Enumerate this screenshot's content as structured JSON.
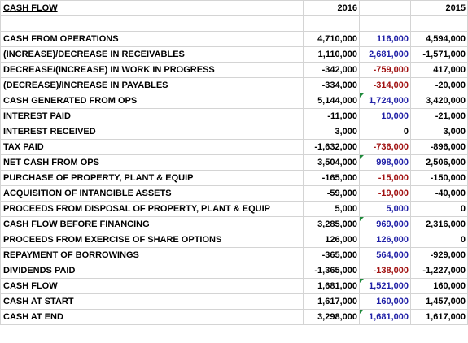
{
  "colors": {
    "positive_diff": "#1f1fa6",
    "negative_diff": "#a11212",
    "error_indicator": "#1f8a3b",
    "gridline": "#d4d4d4"
  },
  "header": {
    "title": "CASH FLOW",
    "year_1": "2016",
    "diff": "",
    "year_2": "2015"
  },
  "rows": [
    {
      "label": "",
      "y2016": "",
      "diff": "",
      "y2015": "",
      "tone": ""
    },
    {
      "label": "CASH FROM OPERATIONS",
      "y2016": "4,710,000",
      "diff": "116,000",
      "y2015": "4,594,000",
      "tone": "blue"
    },
    {
      "label": "(INCREASE)/DECREASE IN RECEIVABLES",
      "y2016": "1,110,000",
      "diff": "2,681,000",
      "y2015": "-1,571,000",
      "tone": "blue"
    },
    {
      "label": "DECREASE/(INCREASE) IN WORK IN PROGRESS",
      "y2016": "-342,000",
      "diff": "-759,000",
      "y2015": "417,000",
      "tone": "red"
    },
    {
      "label": "(DECREASE)/INCREASE IN PAYABLES",
      "y2016": "-334,000",
      "diff": "-314,000",
      "y2015": "-20,000",
      "tone": "red"
    },
    {
      "label": "CASH GENERATED FROM OPS",
      "y2016": "5,144,000",
      "diff": "1,724,000",
      "y2015": "3,420,000",
      "tone": "blue",
      "flag": true
    },
    {
      "label": "INTEREST PAID",
      "y2016": "-11,000",
      "diff": "10,000",
      "y2015": "-21,000",
      "tone": "blue"
    },
    {
      "label": "INTEREST RECEIVED",
      "y2016": "3,000",
      "diff": "0",
      "y2015": "3,000",
      "tone": ""
    },
    {
      "label": "TAX PAID",
      "y2016": "-1,632,000",
      "diff": "-736,000",
      "y2015": "-896,000",
      "tone": "red"
    },
    {
      "label": "NET CASH FROM OPS",
      "y2016": "3,504,000",
      "diff": "998,000",
      "y2015": "2,506,000",
      "tone": "blue",
      "flag": true
    },
    {
      "label": "PURCHASE OF PROPERTY, PLANT & EQUIP",
      "y2016": "-165,000",
      "diff": "-15,000",
      "y2015": "-150,000",
      "tone": "red"
    },
    {
      "label": "ACQUISITION OF INTANGIBLE ASSETS",
      "y2016": "-59,000",
      "diff": "-19,000",
      "y2015": "-40,000",
      "tone": "red"
    },
    {
      "label": "PROCEEDS FROM DISPOSAL OF PROPERTY, PLANT & EQUIP",
      "y2016": "5,000",
      "diff": "5,000",
      "y2015": "0",
      "tone": "blue"
    },
    {
      "label": "CASH FLOW BEFORE FINANCING",
      "y2016": "3,285,000",
      "diff": "969,000",
      "y2015": "2,316,000",
      "tone": "blue",
      "flag": true
    },
    {
      "label": "PROCEEDS FROM EXERCISE OF SHARE OPTIONS",
      "y2016": "126,000",
      "diff": "126,000",
      "y2015": "0",
      "tone": "blue"
    },
    {
      "label": "REPAYMENT OF BORROWINGS",
      "y2016": "-365,000",
      "diff": "564,000",
      "y2015": "-929,000",
      "tone": "blue"
    },
    {
      "label": "DIVIDENDS PAID",
      "y2016": "-1,365,000",
      "diff": "-138,000",
      "y2015": "-1,227,000",
      "tone": "red"
    },
    {
      "label": "CASH FLOW",
      "y2016": "1,681,000",
      "diff": "1,521,000",
      "y2015": "160,000",
      "tone": "blue",
      "flag": true
    },
    {
      "label": "CASH AT START",
      "y2016": "1,617,000",
      "diff": "160,000",
      "y2015": "1,457,000",
      "tone": "blue"
    },
    {
      "label": "CASH AT END",
      "y2016": "3,298,000",
      "diff": "1,681,000",
      "y2015": "1,617,000",
      "tone": "blue",
      "flag": true
    }
  ]
}
